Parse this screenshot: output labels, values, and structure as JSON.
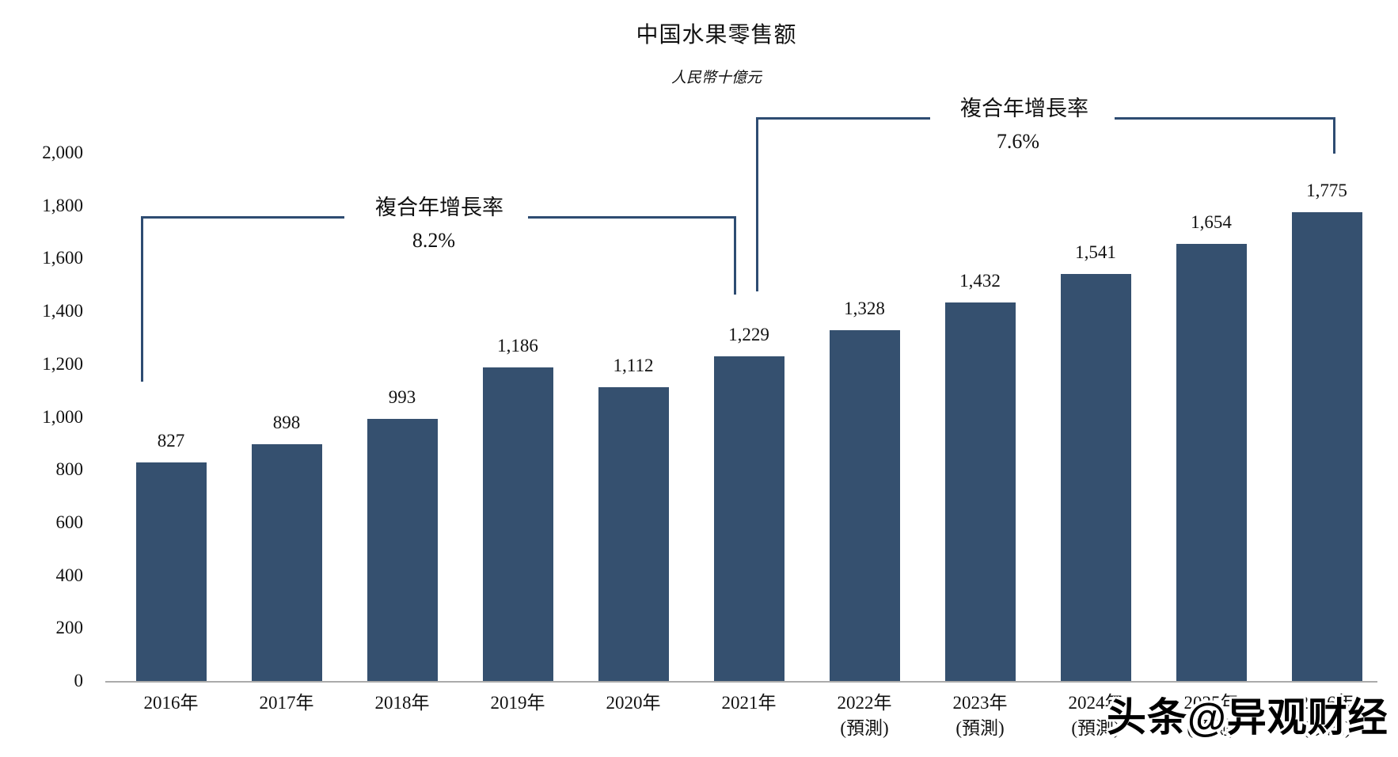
{
  "title": "中国水果零售额",
  "subtitle": "人民幣十億元",
  "watermark": "头条@异观财经",
  "colors": {
    "bar": "#35506F",
    "bracket": "#2E4C72",
    "axis_line": "#ABABAB",
    "text": "#111111"
  },
  "chart_data": {
    "type": "bar",
    "title": "中国水果零售额",
    "subtitle_unit": "人民幣十億元",
    "categories": [
      "2016年",
      "2017年",
      "2018年",
      "2019年",
      "2020年",
      "2021年",
      "2022年",
      "2023年",
      "2024年",
      "2025年",
      "2026年"
    ],
    "forecast_note": "(預測)",
    "forecast_categories": [
      "2022年",
      "2023年",
      "2024年",
      "2025年",
      "2026年"
    ],
    "values": [
      827,
      898,
      993,
      1186,
      1112,
      1229,
      1328,
      1432,
      1541,
      1654,
      1775
    ],
    "value_labels": [
      "827",
      "898",
      "993",
      "1,186",
      "1,112",
      "1,229",
      "1,328",
      "1,432",
      "1,541",
      "1,654",
      "1,775"
    ],
    "ylim": [
      0,
      2000
    ],
    "ytick_step": 200,
    "yticks": [
      "0",
      "200",
      "400",
      "600",
      "800",
      "1,000",
      "1,200",
      "1,400",
      "1,600",
      "1,800",
      "2,000"
    ],
    "grid": false,
    "legend": false,
    "annotations": [
      {
        "label": "複合年增長率",
        "value": "8.2%",
        "from": "2016年",
        "to": "2021年"
      },
      {
        "label": "複合年增長率",
        "value": "7.6%",
        "from": "2021年",
        "to": "2026年"
      }
    ]
  }
}
